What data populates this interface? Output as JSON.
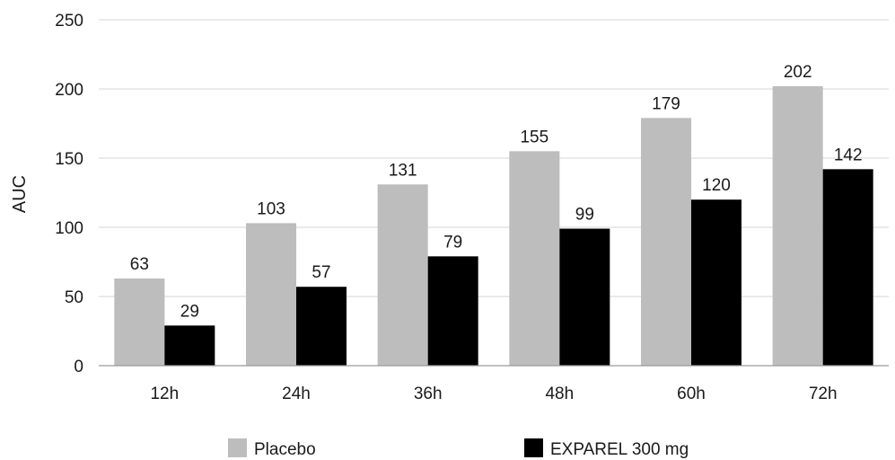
{
  "chart_data": {
    "type": "bar",
    "categories": [
      "12h",
      "24h",
      "36h",
      "48h",
      "60h",
      "72h"
    ],
    "series": [
      {
        "name": "Placebo",
        "values": [
          63,
          103,
          131,
          155,
          179,
          202
        ],
        "color": "#bdbdbd"
      },
      {
        "name": "EXPAREL 300 mg",
        "values": [
          29,
          57,
          79,
          99,
          120,
          142
        ],
        "color": "#000000"
      }
    ],
    "ylabel": "AUC",
    "xlabel": "",
    "ylim": [
      0,
      250
    ],
    "yticks": [
      "0",
      "50",
      "100",
      "150",
      "200",
      "250"
    ],
    "grid": true,
    "legend": "bottom"
  }
}
